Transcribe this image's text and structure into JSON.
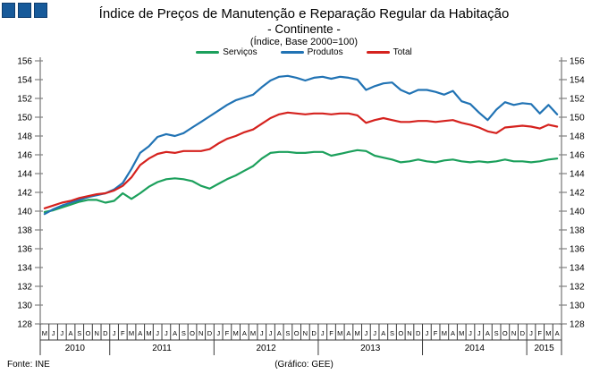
{
  "header": {
    "title": "Índice de Preços de Manutenção e Reparação Regular da Habitação",
    "subtitle": "- Continente -",
    "index_note": "(Índice, Base 2000=100)"
  },
  "legend": [
    {
      "label": "Serviços",
      "color": "#1CA05C"
    },
    {
      "label": "Produtos",
      "color": "#2173B4"
    },
    {
      "label": "Total",
      "color": "#D5221E"
    }
  ],
  "footer": {
    "source": "Fonte: INE",
    "credit": "(Gráfico: GEE)"
  },
  "colors": {
    "logo_blue": "#175A9A",
    "axis_gray": "#808080",
    "separator_gray": "#3a3a3a"
  },
  "chart_data": {
    "type": "line",
    "title": "Índice de Preços de Manutenção e Reparação Regular da Habitação - Continente - (Índice, Base 2000=100)",
    "ylim": [
      128,
      156
    ],
    "yticks": [
      156,
      154,
      152,
      150,
      148,
      146,
      144,
      142,
      140,
      138,
      136,
      134,
      132,
      130,
      128
    ],
    "grid": false,
    "legend_position": "top",
    "x_months": [
      "M",
      "J",
      "J",
      "A",
      "S",
      "O",
      "N",
      "D",
      "J",
      "F",
      "M",
      "A",
      "M",
      "J",
      "J",
      "A",
      "S",
      "O",
      "N",
      "D",
      "J",
      "F",
      "M",
      "A",
      "M",
      "J",
      "J",
      "A",
      "S",
      "O",
      "N",
      "D",
      "J",
      "F",
      "M",
      "A",
      "M",
      "J",
      "J",
      "A",
      "S",
      "O",
      "N",
      "D",
      "J",
      "F",
      "M",
      "A",
      "M",
      "J",
      "J",
      "A",
      "S",
      "O",
      "N",
      "D",
      "J",
      "F",
      "M",
      "A"
    ],
    "x_years": [
      {
        "label": "2010",
        "months": 8
      },
      {
        "label": "2011",
        "months": 12
      },
      {
        "label": "2012",
        "months": 12
      },
      {
        "label": "2013",
        "months": 12
      },
      {
        "label": "2014",
        "months": 12
      },
      {
        "label": "2015",
        "months": 4
      }
    ],
    "series": [
      {
        "name": "Serviços",
        "color": "#1CA05C",
        "values": [
          139.9,
          140.1,
          140.4,
          140.7,
          141.0,
          141.2,
          141.2,
          140.9,
          141.1,
          141.9,
          141.3,
          141.9,
          142.6,
          143.1,
          143.4,
          143.5,
          143.4,
          143.2,
          142.7,
          142.4,
          142.9,
          143.4,
          143.8,
          144.3,
          144.8,
          145.6,
          146.2,
          146.3,
          146.3,
          146.2,
          146.2,
          146.3,
          146.3,
          145.9,
          146.1,
          146.3,
          146.5,
          146.4,
          145.9,
          145.7,
          145.5,
          145.2,
          145.3,
          145.5,
          145.3,
          145.2,
          145.4,
          145.5,
          145.3,
          145.2,
          145.3,
          145.2,
          145.3,
          145.5,
          145.3,
          145.3,
          145.2,
          145.3,
          145.5,
          145.6
        ]
      },
      {
        "name": "Produtos",
        "color": "#2173B4",
        "values": [
          139.7,
          140.2,
          140.6,
          140.9,
          141.2,
          141.5,
          141.7,
          141.9,
          142.3,
          143.0,
          144.5,
          146.2,
          146.9,
          147.9,
          148.2,
          148.0,
          148.3,
          148.9,
          149.5,
          150.1,
          150.7,
          151.3,
          151.8,
          152.1,
          152.4,
          153.2,
          153.9,
          154.3,
          154.4,
          154.2,
          153.9,
          154.2,
          154.3,
          154.1,
          154.3,
          154.2,
          154.0,
          152.9,
          153.3,
          153.6,
          153.7,
          152.9,
          152.5,
          152.9,
          152.9,
          152.7,
          152.4,
          152.8,
          151.7,
          151.4,
          150.5,
          149.7,
          150.8,
          151.6,
          151.3,
          151.5,
          151.4,
          150.4,
          151.3,
          150.3
        ]
      },
      {
        "name": "Total",
        "color": "#D5221E",
        "values": [
          140.3,
          140.6,
          140.9,
          141.1,
          141.4,
          141.6,
          141.8,
          141.9,
          142.2,
          142.7,
          143.6,
          144.9,
          145.6,
          146.1,
          146.3,
          146.2,
          146.4,
          146.4,
          146.4,
          146.6,
          147.2,
          147.7,
          148.0,
          148.4,
          148.7,
          149.3,
          149.9,
          150.3,
          150.5,
          150.4,
          150.3,
          150.4,
          150.4,
          150.3,
          150.4,
          150.4,
          150.2,
          149.4,
          149.7,
          149.9,
          149.7,
          149.5,
          149.5,
          149.6,
          149.6,
          149.5,
          149.6,
          149.7,
          149.4,
          149.2,
          148.9,
          148.5,
          148.3,
          148.9,
          149.0,
          149.1,
          149.0,
          148.8,
          149.2,
          149.0
        ]
      }
    ]
  }
}
